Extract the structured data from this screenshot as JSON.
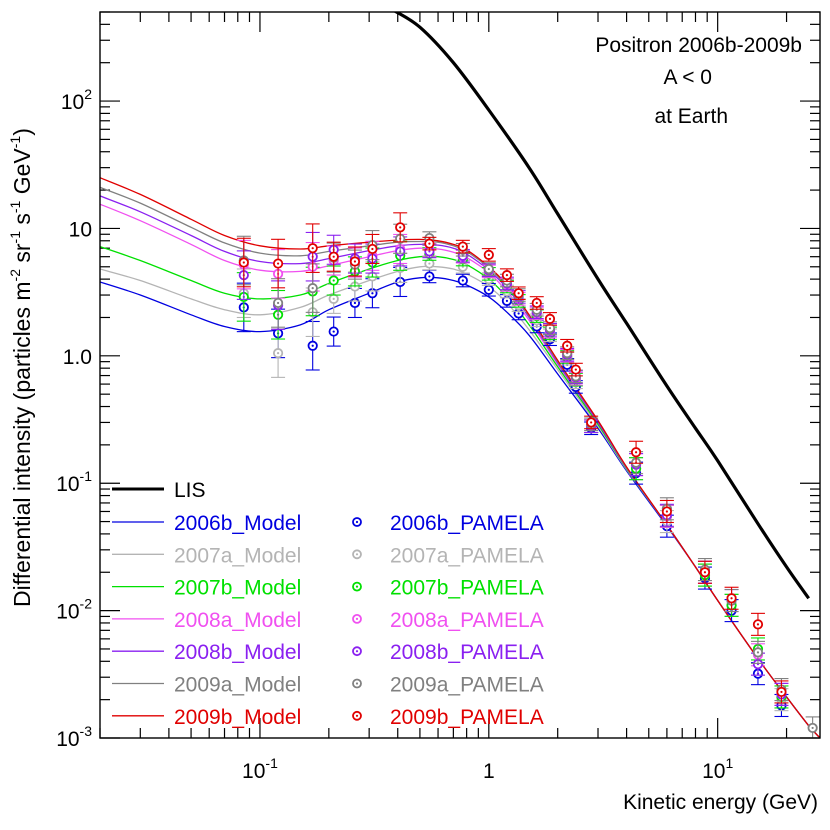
{
  "chart_data": {
    "type": "scatter",
    "title_lines": [
      "Positron 2006b-2009b",
      "A < 0",
      "at Earth"
    ],
    "xlabel": "Kinetic energy (GeV)",
    "ylabel": "Differential intensity (particles m-2 sr-1 s-1 GeV-1)",
    "ylabel_parts": {
      "prefix": "Differential intensity (particles m",
      "exp1": "-2",
      "sr": " sr",
      "exp2": "-1",
      "s": " s",
      "exp3": "-1",
      "gev": " GeV",
      "exp4": "-1",
      "suffix": ")"
    },
    "xscale": "log",
    "yscale": "log",
    "xlim": [
      0.02,
      28
    ],
    "ylim": [
      0.001,
      500
    ],
    "x_ticks": [
      {
        "value": 0.1,
        "base": "10",
        "exp": "-1"
      },
      {
        "value": 1,
        "base": "1",
        "exp": ""
      },
      {
        "value": 10,
        "base": "10",
        "exp": "1"
      }
    ],
    "y_ticks": [
      {
        "value": 0.001,
        "base": "10",
        "exp": "-3"
      },
      {
        "value": 0.01,
        "base": "10",
        "exp": "-2"
      },
      {
        "value": 0.1,
        "base": "10",
        "exp": "-1"
      },
      {
        "value": 1,
        "base": "1",
        "exp": "0",
        "mantissa": "1.0"
      },
      {
        "value": 10,
        "base": "10",
        "exp": ""
      },
      {
        "value": 100,
        "base": "10",
        "exp": "2"
      }
    ],
    "lis": {
      "name": "LIS",
      "color": "#000000",
      "x": [
        0.38,
        0.5,
        0.7,
        1.0,
        1.5,
        2.0,
        3.0,
        4.0,
        6.0,
        8.0,
        10.0,
        15.0,
        20.0,
        25.0
      ],
      "y": [
        520,
        380,
        200,
        85,
        30,
        13,
        4.0,
        1.8,
        0.58,
        0.27,
        0.15,
        0.048,
        0.022,
        0.0125
      ]
    },
    "model_x": [
      0.02,
      0.03,
      0.05,
      0.07,
      0.1,
      0.15,
      0.2,
      0.3,
      0.4,
      0.5,
      0.6,
      0.7,
      0.8,
      1.0,
      1.2,
      1.5,
      2.0,
      3.0,
      4.0,
      6.0,
      8.0,
      10.0,
      15.0,
      20.0,
      25.0,
      28.0
    ],
    "series": [
      {
        "name": "2006b",
        "model_label": "2006b_Model",
        "data_label": "2006b_PAMELA",
        "color": "#0000e0",
        "model_y": [
          3.8,
          3.0,
          2.1,
          1.7,
          1.55,
          1.75,
          2.3,
          3.1,
          3.8,
          4.1,
          4.1,
          3.9,
          3.6,
          2.9,
          2.2,
          1.45,
          0.72,
          0.27,
          0.125,
          0.046,
          0.022,
          0.012,
          0.0042,
          0.0021,
          0.00125,
          0.001
        ],
        "points_x": [
          0.085,
          0.12,
          0.17,
          0.21,
          0.26,
          0.31,
          0.41,
          0.55,
          0.77,
          1.0,
          1.2,
          1.35,
          1.62,
          1.85,
          2.2,
          2.4,
          2.8,
          4.4,
          6.0,
          8.8,
          11.5,
          15.0,
          19.0
        ],
        "points_y": [
          2.4,
          1.5,
          1.2,
          1.55,
          2.6,
          3.1,
          3.8,
          4.2,
          3.9,
          3.3,
          2.7,
          2.15,
          1.7,
          1.35,
          0.85,
          0.57,
          0.27,
          0.12,
          0.046,
          0.018,
          0.01,
          0.0032,
          0.0018
        ]
      },
      {
        "name": "2007a",
        "model_label": "2007a_Model",
        "data_label": "2007a_PAMELA",
        "color": "#b4b4b4",
        "model_y": [
          4.8,
          3.9,
          2.8,
          2.3,
          2.1,
          2.4,
          3.0,
          3.9,
          4.6,
          5.0,
          5.0,
          4.8,
          4.4,
          3.5,
          2.6,
          1.6,
          0.78,
          0.28,
          0.128,
          0.047,
          0.022,
          0.012,
          0.0042,
          0.0021,
          0.00125,
          0.001
        ],
        "points_x": [
          0.085,
          0.12,
          0.17,
          0.21,
          0.26,
          0.31,
          0.41,
          0.55,
          0.77,
          1.0,
          1.2,
          1.35,
          1.62,
          1.85,
          2.2,
          2.4,
          2.8,
          4.4,
          6.0,
          8.8,
          11.5,
          15.0,
          19.0
        ],
        "points_y": [
          3.1,
          1.05,
          2.2,
          2.8,
          3.5,
          4.2,
          4.9,
          5.3,
          5.0,
          4.0,
          3.2,
          2.5,
          1.9,
          1.45,
          0.95,
          0.62,
          0.28,
          0.13,
          0.05,
          0.019,
          0.011,
          0.0038,
          0.002
        ]
      },
      {
        "name": "2007b",
        "model_label": "2007b_Model",
        "data_label": "2007b_PAMELA",
        "color": "#00e000",
        "model_y": [
          7.2,
          5.6,
          3.9,
          3.1,
          2.8,
          3.0,
          3.7,
          4.8,
          5.6,
          6.0,
          6.0,
          5.7,
          5.2,
          4.0,
          2.9,
          1.75,
          0.82,
          0.29,
          0.13,
          0.047,
          0.022,
          0.012,
          0.0042,
          0.0021,
          0.00125,
          0.001
        ],
        "points_x": [
          0.085,
          0.12,
          0.17,
          0.21,
          0.26,
          0.31,
          0.41,
          0.55,
          0.77,
          1.0,
          1.2,
          1.35,
          1.62,
          1.85,
          2.2,
          2.4,
          2.8,
          4.4,
          6.0,
          8.8,
          11.5,
          15.0,
          19.0
        ],
        "points_y": [
          2.9,
          2.1,
          3.2,
          3.9,
          4.6,
          5.4,
          6.1,
          6.3,
          5.7,
          4.4,
          3.5,
          2.7,
          2.05,
          1.5,
          0.98,
          0.65,
          0.28,
          0.13,
          0.055,
          0.019,
          0.011,
          0.005,
          0.0021
        ]
      },
      {
        "name": "2008a",
        "model_label": "2008a_Model",
        "data_label": "2008a_PAMELA",
        "color": "#f050f0",
        "model_y": [
          15.5,
          11.5,
          7.5,
          5.6,
          4.7,
          4.6,
          5.1,
          6.0,
          6.7,
          7.0,
          6.9,
          6.5,
          5.9,
          4.5,
          3.2,
          1.9,
          0.86,
          0.3,
          0.132,
          0.047,
          0.022,
          0.012,
          0.0042,
          0.0021,
          0.00125,
          0.001
        ],
        "points_x": [
          0.085,
          0.12,
          0.17,
          0.21,
          0.26,
          0.31,
          0.41,
          0.55,
          0.77,
          1.0,
          1.2,
          1.35,
          1.62,
          1.85,
          2.2,
          2.4,
          2.8,
          4.4,
          6.0,
          8.8,
          11.5,
          15.0,
          19.0
        ],
        "points_y": [
          5.2,
          4.4,
          5.0,
          5.6,
          5.4,
          6.1,
          6.9,
          6.8,
          6.0,
          4.6,
          3.6,
          2.8,
          2.15,
          1.55,
          1.0,
          0.66,
          0.28,
          0.14,
          0.055,
          0.02,
          0.012,
          0.0045,
          0.0022
        ]
      },
      {
        "name": "2008b",
        "model_label": "2008b_Model",
        "data_label": "2008b_PAMELA",
        "color": "#8a20f0",
        "model_y": [
          18.0,
          13.5,
          8.8,
          6.6,
          5.5,
          5.3,
          5.8,
          6.7,
          7.3,
          7.5,
          7.4,
          7.0,
          6.3,
          4.7,
          3.4,
          2.0,
          0.88,
          0.3,
          0.132,
          0.047,
          0.022,
          0.012,
          0.0042,
          0.0021,
          0.00125,
          0.001
        ],
        "points_x": [
          0.085,
          0.12,
          0.17,
          0.21,
          0.26,
          0.31,
          0.41,
          0.55,
          0.77,
          1.0,
          1.2,
          1.35,
          1.62,
          1.85,
          2.2,
          2.4,
          2.8,
          4.4,
          6.0,
          8.8,
          11.5,
          15.0,
          19.0
        ],
        "points_y": [
          4.3,
          2.5,
          6.0,
          6.8,
          5.8,
          5.8,
          6.6,
          6.6,
          6.1,
          4.7,
          3.7,
          2.9,
          2.2,
          1.6,
          1.02,
          0.68,
          0.28,
          0.14,
          0.056,
          0.02,
          0.012,
          0.0038,
          0.0022
        ]
      },
      {
        "name": "2009a",
        "model_label": "2009a_Model",
        "data_label": "2009a_PAMELA",
        "color": "#808080",
        "model_y": [
          21.0,
          15.8,
          10.2,
          7.7,
          6.4,
          6.1,
          6.6,
          7.3,
          7.8,
          7.9,
          7.8,
          7.3,
          6.6,
          4.9,
          3.5,
          2.05,
          0.9,
          0.31,
          0.133,
          0.047,
          0.022,
          0.012,
          0.0042,
          0.0021,
          0.00125,
          0.001
        ],
        "points_x": [
          0.085,
          0.12,
          0.17,
          0.21,
          0.26,
          0.31,
          0.41,
          0.55,
          0.77,
          1.0,
          1.2,
          1.35,
          1.62,
          1.85,
          2.2,
          2.4,
          2.8,
          4.4,
          6.0,
          8.8,
          11.5,
          15.0,
          19.0,
          26.0
        ],
        "points_y": [
          5.6,
          2.6,
          3.4,
          5.9,
          5.2,
          7.4,
          8.3,
          8.4,
          6.8,
          4.8,
          3.9,
          3.0,
          2.3,
          1.65,
          1.05,
          0.69,
          0.29,
          0.145,
          0.063,
          0.021,
          0.012,
          0.0047,
          0.0024,
          0.0012
        ]
      },
      {
        "name": "2009b",
        "model_label": "2009b_Model",
        "data_label": "2009b_PAMELA",
        "color": "#e00000",
        "model_y": [
          25.0,
          18.5,
          11.8,
          8.8,
          7.3,
          6.9,
          7.3,
          7.8,
          8.1,
          8.2,
          8.0,
          7.5,
          6.8,
          5.0,
          3.6,
          2.1,
          0.92,
          0.31,
          0.134,
          0.047,
          0.022,
          0.012,
          0.0042,
          0.0021,
          0.00125,
          0.001
        ],
        "points_x": [
          0.085,
          0.12,
          0.17,
          0.21,
          0.26,
          0.31,
          0.41,
          0.55,
          0.77,
          1.0,
          1.2,
          1.35,
          1.62,
          1.85,
          2.2,
          2.4,
          2.8,
          4.4,
          6.0,
          8.8,
          11.5,
          15.0,
          19.0
        ],
        "points_y": [
          5.4,
          5.3,
          7.0,
          6.0,
          5.5,
          6.9,
          10.2,
          7.6,
          7.2,
          6.2,
          4.3,
          3.1,
          2.6,
          1.95,
          1.2,
          0.78,
          0.3,
          0.175,
          0.06,
          0.02,
          0.0125,
          0.0078,
          0.0023
        ]
      }
    ]
  }
}
